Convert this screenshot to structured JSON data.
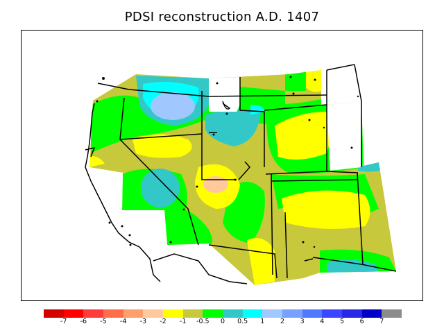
{
  "title": "PDSI reconstruction A.D. 1407",
  "colorbar": {
    "colors": [
      "#d40000",
      "#ff0000",
      "#ff3c3c",
      "#ff6e46",
      "#ff9f6e",
      "#ffc99c",
      "#ffff00",
      "#c8c83c",
      "#00ff00",
      "#32c8c8",
      "#00ffff",
      "#a0c8ff",
      "#78a0ff",
      "#5078ff",
      "#3c46ff",
      "#2828e6",
      "#0000c8",
      "#8c8c8c"
    ],
    "labels": [
      "-7",
      "-6",
      "-5",
      "-4",
      "-3",
      "-2",
      "-1",
      "-0.5",
      "0",
      "0.5",
      "1",
      "2",
      "3",
      "4",
      "5",
      "6",
      "7"
    ]
  },
  "map_data": {
    "variable": "PDSI",
    "year": "A.D. 1407",
    "region": "western United States",
    "field_colors": {
      "dry": "#ffff00",
      "slightly_dry": "#c8c83c",
      "near_normal": "#00ff00",
      "slightly_wet": "#32c8c8",
      "wet": "#00ffff",
      "very_wet": "#a0c8ff",
      "very_dry": "#ffc99c"
    }
  }
}
